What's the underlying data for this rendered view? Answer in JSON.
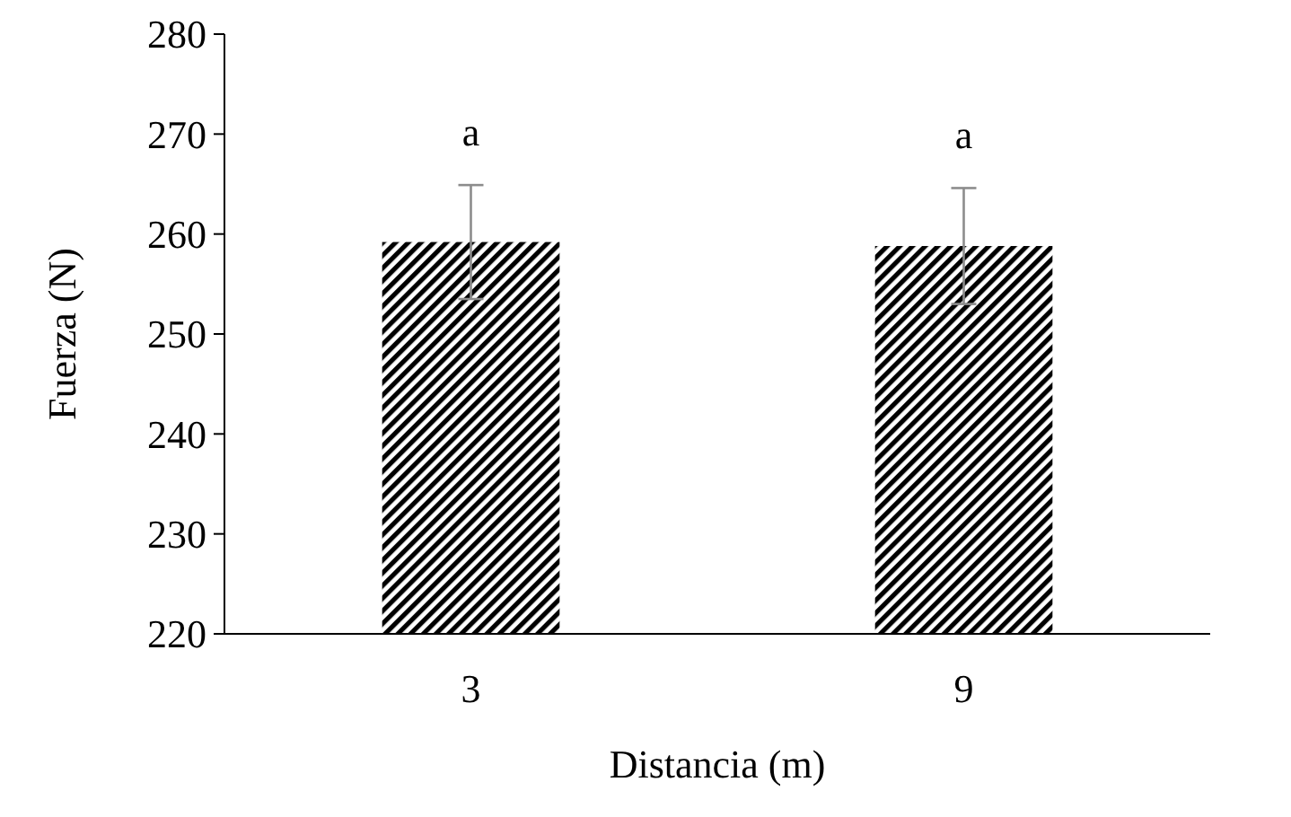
{
  "chart_data": {
    "type": "bar",
    "xlabel": "Distancia (m)",
    "ylabel": "Fuerza (N)",
    "categories": [
      "3",
      "9"
    ],
    "series": [
      {
        "color": "#000000",
        "values": [
          259.2,
          258.8
        ],
        "errors": [
          5.7,
          5.8
        ]
      }
    ],
    "ylim": [
      220,
      280
    ],
    "yticks": [
      220,
      230,
      240,
      250,
      260,
      270,
      280
    ],
    "grid": false,
    "annotations": [
      "a",
      "a"
    ]
  }
}
